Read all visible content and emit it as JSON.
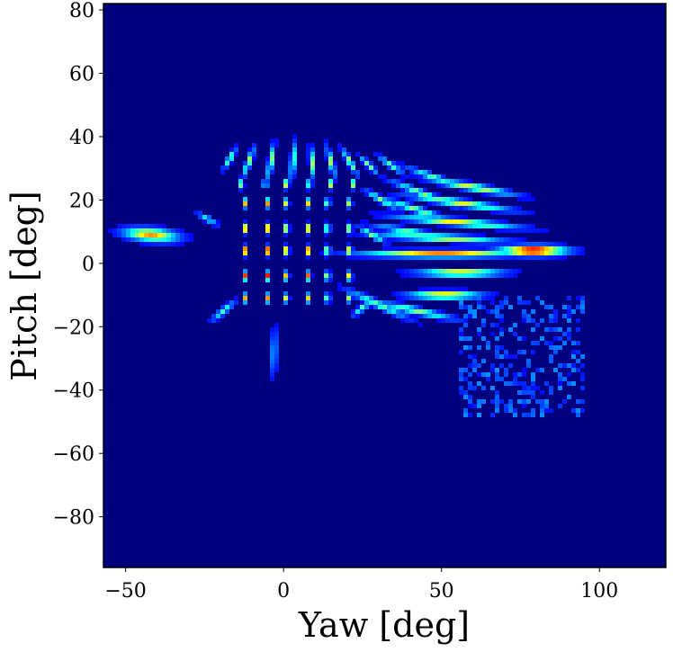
{
  "chart_data": {
    "type": "heatmap",
    "title": "",
    "xlabel": "Yaw [deg]",
    "ylabel": "Pitch [deg]",
    "xlim": [
      -57,
      121
    ],
    "ylim": [
      -96,
      82
    ],
    "xticks": [
      -50,
      0,
      50,
      100
    ],
    "yticks": [
      -80,
      -60,
      -40,
      -20,
      0,
      20,
      40,
      60,
      80
    ],
    "xtick_labels": [
      "−50",
      "0",
      "50",
      "100"
    ],
    "ytick_labels": [
      "−80",
      "−60",
      "−40",
      "−20",
      "0",
      "20",
      "40",
      "60",
      "80"
    ],
    "colormap": "jet",
    "background_color": "#00007f",
    "grid": false,
    "blobs": [
      {
        "yaw": -42,
        "pitch": 9,
        "len": 18,
        "angle": -5,
        "w": 4.5,
        "peak": 0.7
      },
      {
        "yaw": -24,
        "pitch": 14,
        "len": 8,
        "angle": -30,
        "w": 2,
        "peak": 0.3
      },
      {
        "yaw": -19,
        "pitch": -15,
        "len": 10,
        "angle": 40,
        "w": 2.2,
        "peak": 0.35
      },
      {
        "yaw": -3,
        "pitch": -28,
        "len": 16,
        "angle": 88,
        "w": 2.5,
        "peak": 0.22
      },
      {
        "yaw": 30,
        "pitch": -13,
        "len": 22,
        "angle": -25,
        "w": 2.5,
        "peak": 0.4
      },
      {
        "yaw": 42,
        "pitch": -15,
        "len": 26,
        "angle": -12,
        "w": 2.5,
        "peak": 0.45
      },
      {
        "yaw": 51,
        "pitch": -10,
        "len": 24,
        "angle": 0,
        "w": 2.8,
        "peak": 0.65
      },
      {
        "yaw": 56,
        "pitch": -3,
        "len": 28,
        "angle": 0,
        "w": 2.5,
        "peak": 0.7
      },
      {
        "yaw": 50,
        "pitch": 3,
        "len": 52,
        "angle": 0,
        "w": 2.5,
        "peak": 0.75
      },
      {
        "yaw": 79,
        "pitch": 4,
        "len": 22,
        "angle": 0,
        "w": 3.5,
        "peak": 1.0
      },
      {
        "yaw": 50,
        "pitch": 8,
        "len": 42,
        "angle": -3,
        "w": 2.5,
        "peak": 0.55
      },
      {
        "yaw": 55,
        "pitch": 13,
        "len": 40,
        "angle": -5,
        "w": 2.5,
        "peak": 0.6
      },
      {
        "yaw": 56,
        "pitch": 19,
        "len": 34,
        "angle": -8,
        "w": 2.5,
        "peak": 0.55
      },
      {
        "yaw": 60,
        "pitch": 24,
        "len": 28,
        "angle": -10,
        "w": 2.5,
        "peak": 0.55
      },
      {
        "yaw": 40,
        "pitch": 10,
        "len": 24,
        "angle": -10,
        "w": 2.2,
        "peak": 0.4
      },
      {
        "yaw": 42,
        "pitch": 17,
        "len": 22,
        "angle": -18,
        "w": 2.2,
        "peak": 0.45
      },
      {
        "yaw": 44,
        "pitch": 22,
        "len": 22,
        "angle": -22,
        "w": 2.2,
        "peak": 0.45
      },
      {
        "yaw": 48,
        "pitch": 27,
        "len": 20,
        "angle": -20,
        "w": 2.2,
        "peak": 0.4
      },
      {
        "yaw": 31,
        "pitch": 20,
        "len": 12,
        "angle": -30,
        "w": 2,
        "peak": 0.45
      },
      {
        "yaw": 34,
        "pitch": 31,
        "len": 10,
        "angle": -35,
        "w": 2,
        "peak": 0.4
      },
      {
        "yaw": 28,
        "pitch": 9,
        "len": 10,
        "angle": -30,
        "w": 2,
        "peak": 0.45
      },
      {
        "yaw": 25,
        "pitch": -14,
        "len": 8,
        "angle": 40,
        "w": 2,
        "peak": 0.4
      },
      {
        "yaw": -17,
        "pitch": 33,
        "len": 8,
        "angle": 60,
        "w": 1.8,
        "peak": 0.45
      },
      {
        "yaw": -11,
        "pitch": 32,
        "len": 10,
        "angle": 70,
        "w": 1.8,
        "peak": 0.5
      },
      {
        "yaw": -4,
        "pitch": 32,
        "len": 12,
        "angle": 80,
        "w": 1.8,
        "peak": 0.5
      },
      {
        "yaw": 3,
        "pitch": 32,
        "len": 12,
        "angle": 85,
        "w": 1.8,
        "peak": 0.5
      },
      {
        "yaw": 9,
        "pitch": 32,
        "len": 10,
        "angle": -85,
        "w": 1.8,
        "peak": 0.5
      },
      {
        "yaw": 15,
        "pitch": 32,
        "len": 10,
        "angle": -75,
        "w": 1.8,
        "peak": 0.5
      },
      {
        "yaw": 21,
        "pitch": 32,
        "len": 10,
        "angle": -60,
        "w": 1.8,
        "peak": 0.5
      },
      {
        "yaw": 27,
        "pitch": 31,
        "len": 8,
        "angle": -45,
        "w": 1.8,
        "peak": 0.45
      }
    ],
    "grid_points": {
      "yaws": [
        -12,
        -5,
        1,
        8,
        14,
        21
      ],
      "rows": [
        {
          "pitch": 25,
          "peak": 0.6
        },
        {
          "pitch": 19,
          "peak": 0.7
        },
        {
          "pitch": 11,
          "peak": 0.8
        },
        {
          "pitch": 4,
          "peak": 0.95
        },
        {
          "pitch": -4,
          "peak": 0.85
        },
        {
          "pitch": -11,
          "peak": 0.7
        }
      ]
    },
    "noise_region": {
      "yaw_range": [
        55,
        95
      ],
      "pitch_range": [
        -48,
        -10
      ],
      "intensity": 0.18
    }
  }
}
